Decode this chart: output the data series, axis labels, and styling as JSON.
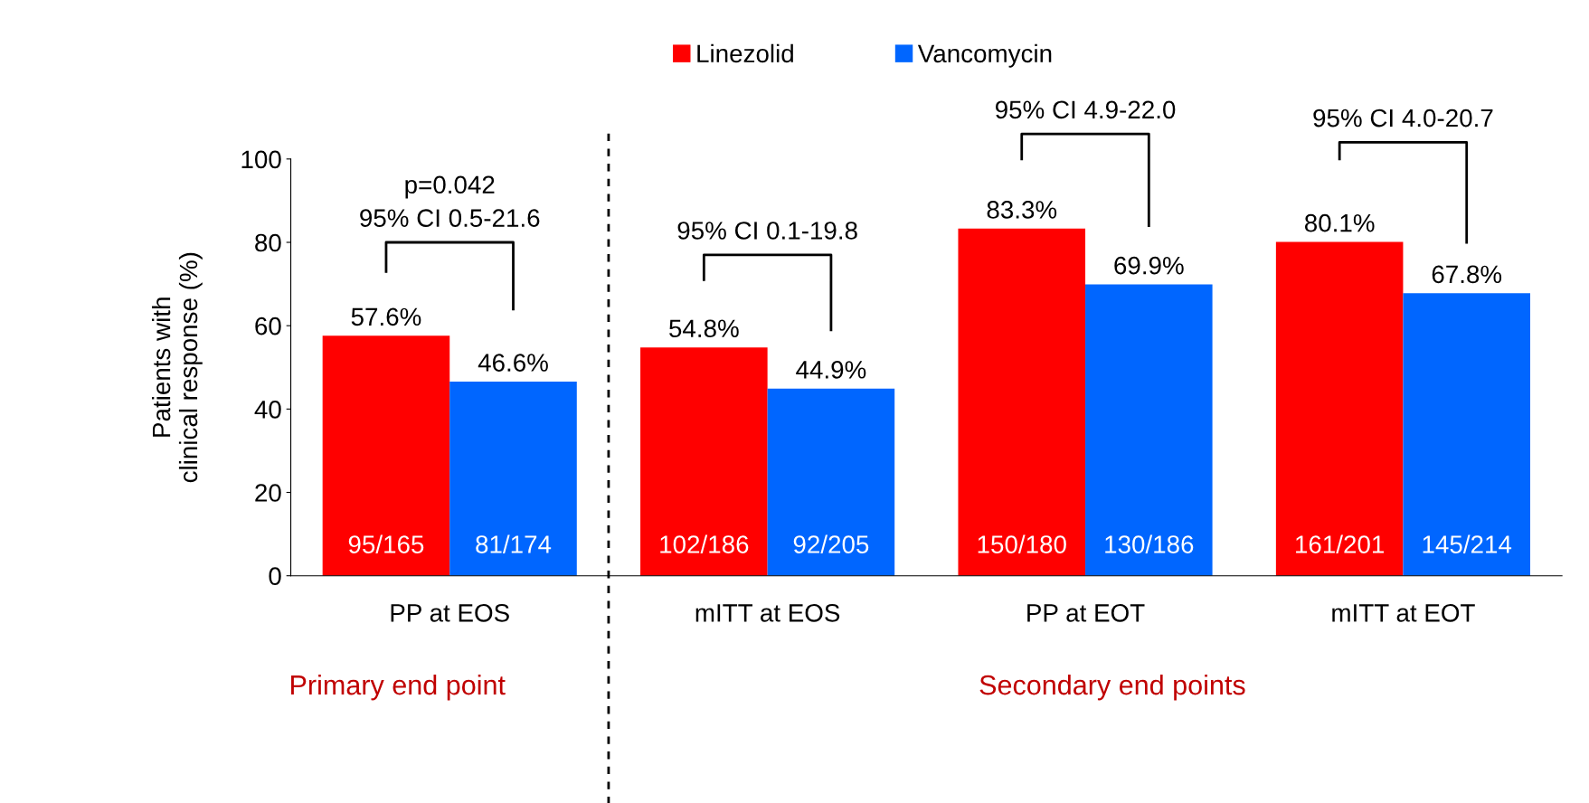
{
  "chart_data": {
    "type": "bar",
    "ylabel": "Patients with\nclinical response (%)",
    "categories": [
      "PP at EOS",
      "mITT at EOS",
      "PP at EOT",
      "mITT at EOT"
    ],
    "series": [
      {
        "name": "Linezolid",
        "color": "#ff0000",
        "values": [
          57.6,
          54.8,
          83.3,
          80.1
        ],
        "value_labels": [
          "57.6%",
          "54.8%",
          "83.3%",
          "80.1%"
        ]
      },
      {
        "name": "Vancomycin",
        "color": "#0066ff",
        "values": [
          46.6,
          44.9,
          69.9,
          67.8
        ],
        "value_labels": [
          "46.6%",
          "44.9%",
          "69.9%",
          "67.8%"
        ]
      }
    ],
    "ylim": [
      0,
      100
    ],
    "yticks": [
      0,
      20,
      40,
      60,
      80,
      100
    ],
    "grid": false,
    "legend": "top",
    "annotations": [
      "p=0.042",
      "95% CI 0.5-21.6",
      "95% CI 0.1-19.8",
      "95% CI 4.9-22.0",
      "95% CI 4.0-20.7",
      "95/165",
      "81/174",
      "102/186",
      "92/205",
      "150/180",
      "130/186",
      "161/201",
      "145/214",
      "Primary end point",
      "Secondary end points"
    ]
  }
}
